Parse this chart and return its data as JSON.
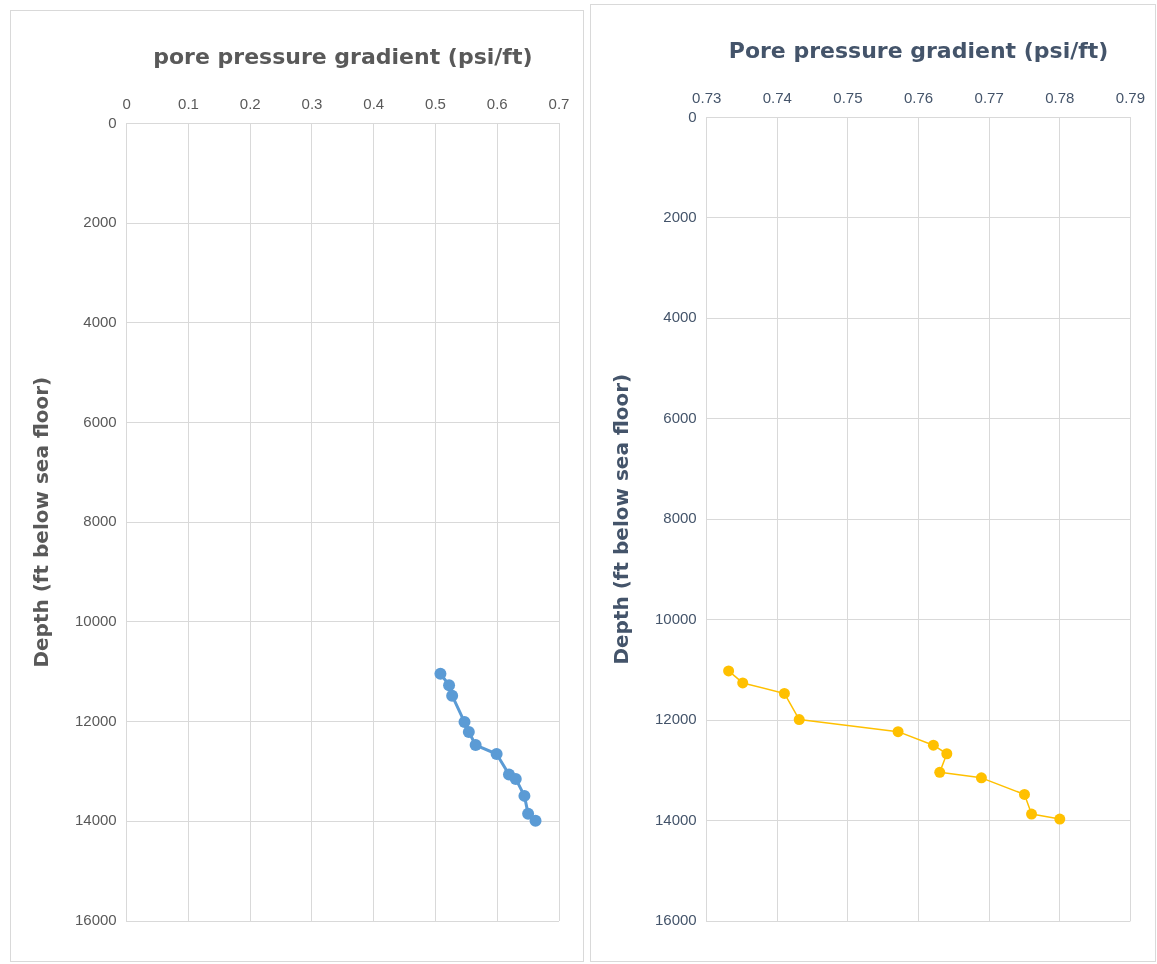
{
  "chart_data": [
    {
      "type": "line",
      "xlabel": "pore pressure gradient (psi/ft)",
      "ylabel": "Depth (ft below sea floor)",
      "x": [
        0.508,
        0.522,
        0.527,
        0.547,
        0.554,
        0.565,
        0.599,
        0.619,
        0.63,
        0.644,
        0.65,
        0.662
      ],
      "values": [
        11040,
        11270,
        11480,
        12010,
        12210,
        12470,
        12650,
        13060,
        13150,
        13490,
        13850,
        13990
      ],
      "color": "#5b9bd5",
      "marker": "circle",
      "line_style": "solid",
      "grid": true,
      "legend": false,
      "xlim": [
        0,
        0.7
      ],
      "xticks": [
        0,
        0.1,
        0.2,
        0.3,
        0.4,
        0.5,
        0.6,
        0.7
      ],
      "ylim": [
        16000,
        0
      ],
      "yticks": [
        0,
        2000,
        4000,
        6000,
        8000,
        10000,
        12000,
        14000,
        16000
      ]
    },
    {
      "type": "line",
      "xlabel": "Pore pressure gradient (psi/ft)",
      "ylabel": "Depth (ft below sea floor)",
      "x": [
        0.7331,
        0.7351,
        0.741,
        0.7431,
        0.7571,
        0.7621,
        0.764,
        0.763,
        0.7689,
        0.775,
        0.776,
        0.78
      ],
      "values": [
        11020,
        11260,
        11470,
        11990,
        12230,
        12500,
        12670,
        13040,
        13150,
        13480,
        13870,
        13970
      ],
      "color": "#ffc000",
      "marker": "circle",
      "line_style": "solid",
      "grid": true,
      "legend": false,
      "xlim": [
        0.73,
        0.79
      ],
      "xticks": [
        0.73,
        0.74,
        0.75,
        0.76,
        0.77,
        0.78,
        0.79
      ],
      "ylim": [
        16000,
        0
      ],
      "yticks": [
        0,
        2000,
        4000,
        6000,
        8000,
        10000,
        12000,
        14000,
        16000
      ]
    }
  ]
}
